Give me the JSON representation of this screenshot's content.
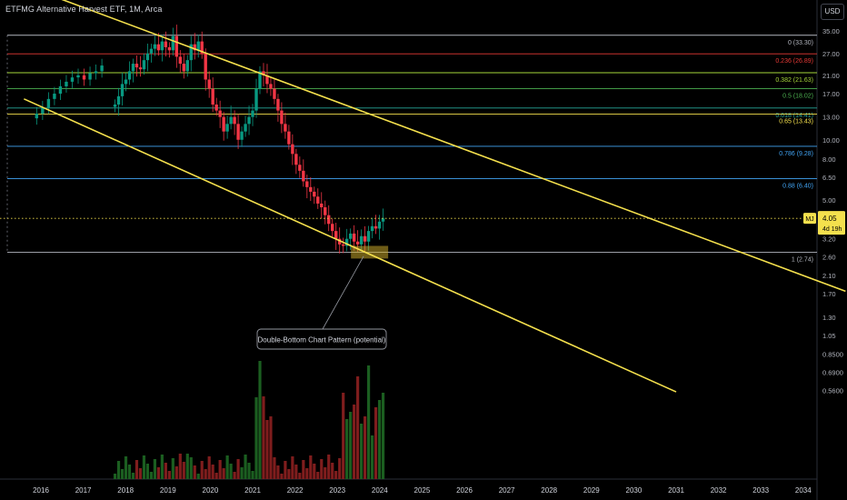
{
  "header": {
    "title": "ETFMG Alternative Harvest ETF, 1M, Arca",
    "currency_button": "USD"
  },
  "price_tag": {
    "symbol": "MJ",
    "price": "4.05",
    "countdown": "4d 19h"
  },
  "annotation": {
    "label": "Double-Bottom Chart Pattern (potential)"
  },
  "colors": {
    "background": "#000000",
    "up_candle": "#089981",
    "down_candle": "#f23645",
    "trendline": "#f4e04d",
    "volume_up": "#1b5e20",
    "volume_down": "#7f1d1d",
    "price_line": "#f4e04d"
  },
  "chart_data": {
    "type": "candlestick",
    "title": "ETFMG Alternative Harvest ETF, 1M, Arca",
    "scale": "log",
    "x_ticks": [
      "2016",
      "2017",
      "2018",
      "2019",
      "2020",
      "2021",
      "2022",
      "2023",
      "2024",
      "2025",
      "2026",
      "2027",
      "2028",
      "2029",
      "2030",
      "2031",
      "2032",
      "2033",
      "2034"
    ],
    "y_ticks": [
      "35.00",
      "27.00",
      "21.00",
      "17.00",
      "13.00",
      "10.00",
      "8.00",
      "6.50",
      "5.00",
      "4.00",
      "3.20",
      "2.60",
      "2.10",
      "1.70",
      "1.30",
      "1.05",
      "0.8500",
      "0.6900",
      "0.5600"
    ],
    "ylim": [
      0.52,
      39
    ],
    "last_price": 4.05,
    "fibonacci_levels": [
      {
        "label": "0 (33.30)",
        "ratio": 0,
        "value": 33.3,
        "color": "#b2b5be"
      },
      {
        "label": "0.236 (26.89)",
        "ratio": 0.236,
        "value": 26.89,
        "color": "#e53935"
      },
      {
        "label": "0.382 (21.63)",
        "ratio": 0.382,
        "value": 21.63,
        "color": "#a5d63a"
      },
      {
        "label": "0.5 (18.02)",
        "ratio": 0.5,
        "value": 18.02,
        "color": "#4caf50"
      },
      {
        "label": "0.618 (14.41)",
        "ratio": 0.618,
        "value": 14.41,
        "color": "#26a69a"
      },
      {
        "label": "0.65 (13.43)",
        "ratio": 0.65,
        "value": 13.43,
        "color": "#f4e04d"
      },
      {
        "label": "0.786 (9.28)",
        "ratio": 0.786,
        "value": 9.28,
        "color": "#42a5f5"
      },
      {
        "label": "0.88 (6.40)",
        "ratio": 0.88,
        "value": 6.4,
        "color": "#42a5f5"
      },
      {
        "label": "1 (2.74)",
        "ratio": 1,
        "value": 2.74,
        "color": "#b2b5be"
      }
    ],
    "trendlines": [
      {
        "name": "upper",
        "from": {
          "date": "2016.0",
          "value": 55
        },
        "to": {
          "date": "2035.0",
          "value": 1.75
        }
      },
      {
        "name": "lower",
        "from": {
          "date": "2015.6",
          "value": 16
        },
        "to": {
          "date": "2031.0",
          "value": 0.55
        }
      }
    ],
    "highlight_zone": {
      "from": "2023.45",
      "to": "2024.2",
      "low": 2.55,
      "high": 2.95
    },
    "series": [
      {
        "name": "MJ",
        "closes": [
          15,
          16.5,
          19,
          20,
          22,
          24,
          23,
          22.5,
          25,
          27,
          28.5,
          30,
          28,
          31,
          29,
          28,
          33,
          26,
          24,
          22,
          25,
          30,
          28,
          31,
          27,
          20,
          18,
          15,
          14,
          13,
          11,
          12,
          13,
          12,
          10,
          11,
          12,
          13,
          14,
          18,
          22,
          21,
          19,
          18,
          16,
          14,
          12,
          11,
          9.5,
          8.5,
          7.5,
          7,
          6.2,
          5.8,
          5.5,
          5.2,
          4.8,
          4.6,
          4.2,
          3.8,
          3.5,
          3.2,
          3.0,
          2.95,
          3.2,
          3.4,
          3.1,
          3.0,
          3.3,
          3.1,
          3.5,
          3.7,
          3.6,
          3.9,
          4.05
        ]
      }
    ]
  }
}
